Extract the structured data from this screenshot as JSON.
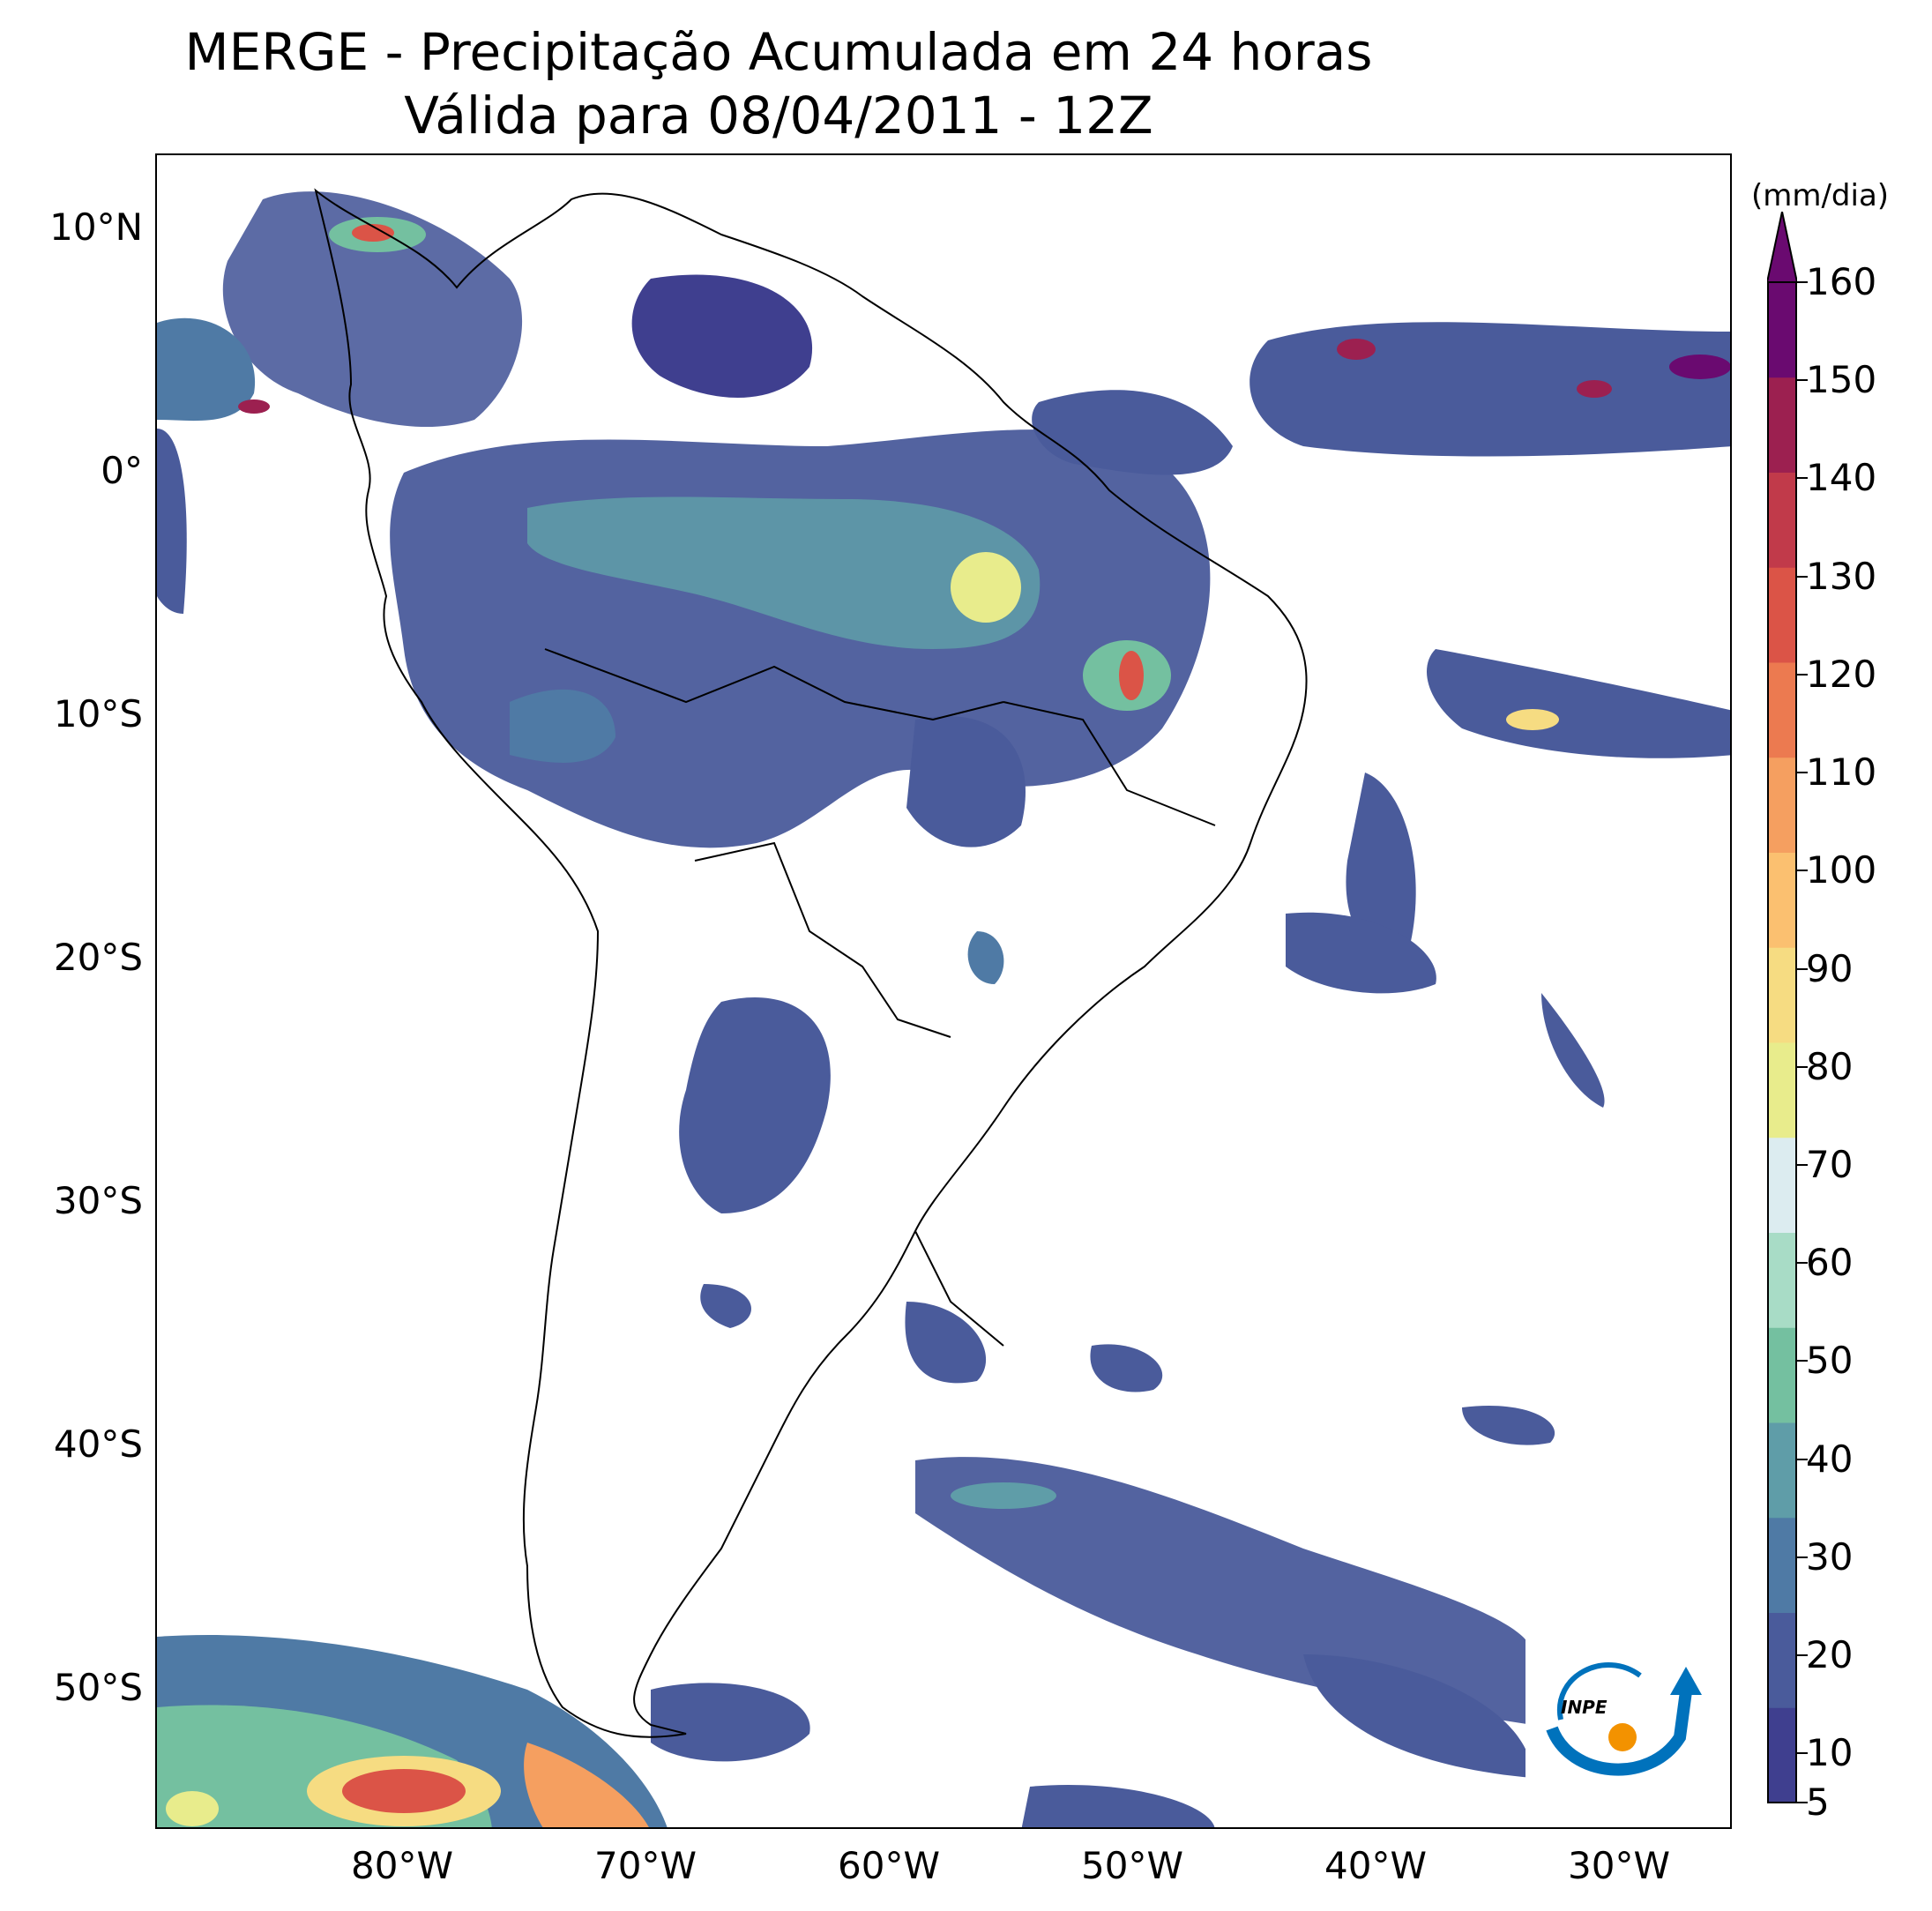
{
  "title": {
    "line1": "MERGE - Precipitação Acumulada em 24 horas",
    "line2": "Válida para 08/04/2011 - 12Z"
  },
  "map": {
    "region": "South America",
    "variable": "24-hour accumulated precipitation",
    "lat_labels": [
      "10°N",
      "0°",
      "10°S",
      "20°S",
      "30°S",
      "40°S",
      "50°S"
    ],
    "lon_labels": [
      "80°W",
      "70°W",
      "60°W",
      "50°W",
      "40°W",
      "30°W"
    ],
    "extent": {
      "lon": [
        -90,
        -25
      ],
      "lat": [
        -56,
        13
      ]
    }
  },
  "colorbar": {
    "unit": "(mm/dia)",
    "ticks": [
      "160",
      "150",
      "140",
      "130",
      "120",
      "110",
      "100",
      "90",
      "80",
      "70",
      "60",
      "50",
      "40",
      "30",
      "20",
      "10",
      "5"
    ],
    "colors": [
      "#3f3f8f",
      "#4a5b9b",
      "#4f7aa5",
      "#5f9da8",
      "#74c0a0",
      "#a8dcc6",
      "#dcecf0",
      "#e8ec8c",
      "#f6dc82",
      "#fbc070",
      "#f59f60",
      "#ec7a50",
      "#db5447",
      "#c13a4a",
      "#9c2050",
      "#6a0a70"
    ]
  },
  "logo": {
    "text": "INPE"
  }
}
